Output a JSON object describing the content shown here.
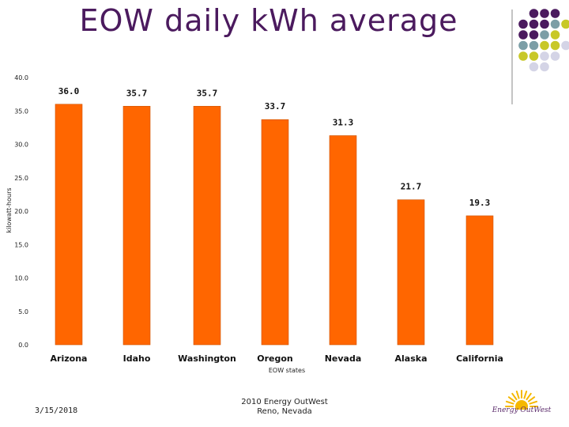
{
  "slide": {
    "title": "EOW daily kWh average",
    "footer_date": "3/15/2018",
    "footer_line1": "2010 Energy OutWest",
    "footer_line2": "Reno, Nevada",
    "logo_text": "Energy OutWest"
  },
  "colors": {
    "bar": "#ff6600",
    "bar_edge": "#cc5200",
    "title": "#4b1a5e",
    "dot_purple": "#4b1a5e",
    "dot_teal": "#7c9ea6",
    "dot_yellow": "#c8c828",
    "dot_lavender": "#d4d4e6"
  },
  "chart_data": {
    "type": "bar",
    "title": "",
    "xlabel": "EOW states",
    "ylabel": "kilowatt-hours",
    "categories": [
      "Arizona",
      "Idaho",
      "Washington",
      "Oregon",
      "Nevada",
      "Alaska",
      "California"
    ],
    "values": [
      36.0,
      35.7,
      35.7,
      33.7,
      31.3,
      21.7,
      19.3
    ],
    "data_labels": [
      "36.0",
      "35.7",
      "35.7",
      "33.7",
      "31.3",
      "21.7",
      "19.3"
    ],
    "ylim": [
      0,
      40
    ],
    "yticks": [
      "0.0",
      "5.0",
      "10.0",
      "15.0",
      "20.0",
      "25.0",
      "30.0",
      "35.0",
      "40.0"
    ],
    "grid": false,
    "legend": "none"
  }
}
